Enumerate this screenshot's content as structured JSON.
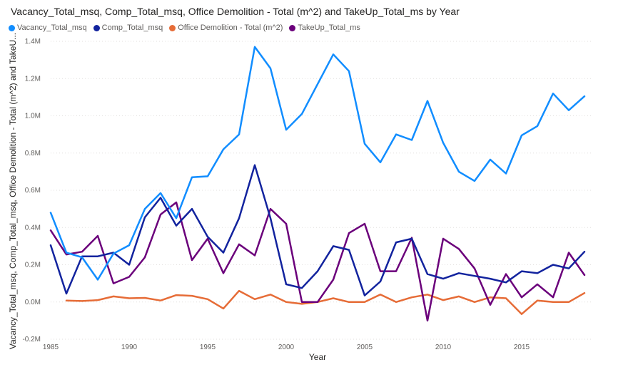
{
  "chart_data": {
    "type": "line",
    "title": "Vacancy_Total_msq, Comp_Total_msq, Office Demolition - Total (m^2) and TakeUp_Total_ms by Year",
    "xlabel": "Year",
    "ylabel": "Vacancy_Total_msq, Comp_Total_msq, Office Demolition - Total (m^2) and TakeU...",
    "xlim": [
      1985,
      2019
    ],
    "ylim": [
      -200000,
      1400000
    ],
    "x_ticks": [
      1985,
      1990,
      1995,
      2000,
      2005,
      2010,
      2015
    ],
    "x_tick_labels": [
      "1985",
      "1990",
      "1995",
      "2000",
      "2005",
      "2010",
      "2015"
    ],
    "y_ticks": [
      -200000,
      0,
      200000,
      400000,
      600000,
      800000,
      1000000,
      1200000,
      1400000
    ],
    "y_tick_labels": [
      "-0.2M",
      "0.0M",
      "0.2M",
      "0.4M",
      "0.6M",
      "0.8M",
      "1.0M",
      "1.2M",
      "1.4M"
    ],
    "grid": true,
    "legend_position": "top-left",
    "x": [
      1985,
      1986,
      1987,
      1988,
      1989,
      1990,
      1991,
      1992,
      1993,
      1994,
      1995,
      1996,
      1997,
      1998,
      1999,
      2000,
      2001,
      2002,
      2003,
      2004,
      2005,
      2006,
      2007,
      2008,
      2009,
      2010,
      2011,
      2012,
      2013,
      2014,
      2015,
      2016,
      2017,
      2018,
      2019
    ],
    "series": [
      {
        "name": "Vacancy_Total_msq",
        "color": "#118dff",
        "values": [
          480000,
          265000,
          240000,
          120000,
          260000,
          305000,
          500000,
          585000,
          450000,
          670000,
          675000,
          820000,
          900000,
          1370000,
          1255000,
          925000,
          1010000,
          1170000,
          1330000,
          1240000,
          850000,
          750000,
          900000,
          870000,
          1080000,
          855000,
          700000,
          650000,
          765000,
          690000,
          895000,
          945000,
          1120000,
          1030000,
          1105000
        ]
      },
      {
        "name": "Comp_Total_msq",
        "color": "#12239e",
        "values": [
          305000,
          45000,
          245000,
          245000,
          265000,
          200000,
          455000,
          560000,
          410000,
          500000,
          350000,
          265000,
          450000,
          735000,
          450000,
          95000,
          75000,
          165000,
          300000,
          280000,
          35000,
          110000,
          320000,
          340000,
          150000,
          125000,
          155000,
          140000,
          125000,
          105000,
          165000,
          155000,
          200000,
          180000,
          270000
        ]
      },
      {
        "name": "Office Demolition - Total (m^2)",
        "color": "#e66c37",
        "values": [
          null,
          8000,
          5000,
          10000,
          30000,
          20000,
          22000,
          8000,
          37000,
          33000,
          15000,
          -35000,
          60000,
          15000,
          40000,
          0,
          -10000,
          0,
          20000,
          0,
          0,
          40000,
          0,
          25000,
          40000,
          10000,
          30000,
          0,
          25000,
          20000,
          -65000,
          8000,
          0,
          0,
          48000
        ]
      },
      {
        "name": "TakeUp_Total_ms",
        "color": "#6b007b",
        "values": [
          385000,
          255000,
          270000,
          355000,
          100000,
          135000,
          240000,
          470000,
          535000,
          225000,
          340000,
          155000,
          310000,
          250000,
          500000,
          420000,
          0,
          0,
          120000,
          370000,
          420000,
          165000,
          165000,
          345000,
          -100000,
          340000,
          285000,
          180000,
          -15000,
          150000,
          25000,
          95000,
          25000,
          265000,
          145000
        ]
      }
    ]
  }
}
